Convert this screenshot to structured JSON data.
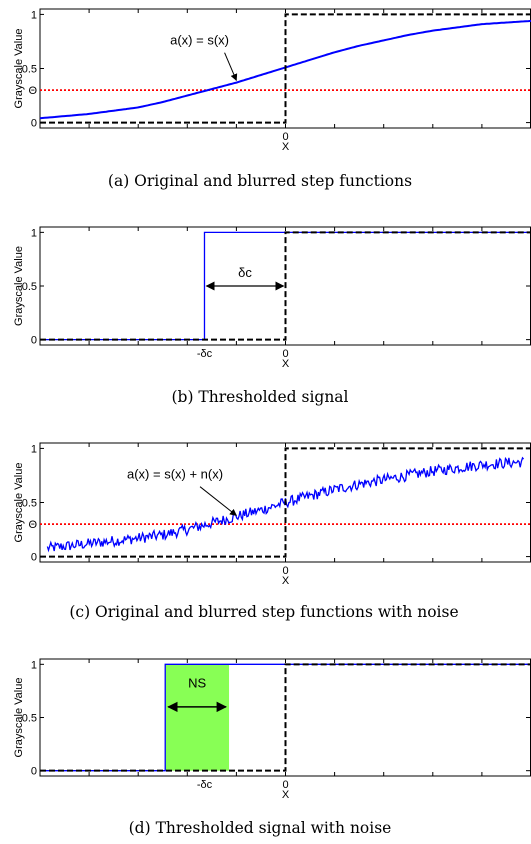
{
  "chart_data": [
    {
      "type": "line",
      "caption": "(a) Original and blurred step functions",
      "ylabel": "Grayscale Value",
      "xlabel": "X",
      "xlim": [
        -1,
        1
      ],
      "ylim": [
        -0.05,
        1.05
      ],
      "yticks": [
        0,
        0.5,
        1
      ],
      "yticklabels": [
        "0",
        "0.5",
        "1"
      ],
      "xticks": [
        0
      ],
      "xticklabels": [
        "0"
      ],
      "threshold": {
        "y": 0.3,
        "label": "Θ",
        "color": "#ff0000"
      },
      "step": {
        "x": 0,
        "low": 0,
        "high": 1,
        "color": "#000000"
      },
      "blurred": {
        "color": "#0000ff",
        "x": [
          -1,
          -0.8,
          -0.6,
          -0.5,
          -0.4,
          -0.3,
          -0.2,
          -0.1,
          0,
          0.1,
          0.2,
          0.3,
          0.4,
          0.5,
          0.6,
          0.8,
          1
        ],
        "y": [
          0.04,
          0.08,
          0.14,
          0.19,
          0.25,
          0.31,
          0.37,
          0.44,
          0.51,
          0.58,
          0.65,
          0.71,
          0.76,
          0.81,
          0.85,
          0.91,
          0.94
        ]
      },
      "annotation": {
        "text": "a(x) = s(x)",
        "x": -0.35,
        "y": 0.72,
        "arrow_to": [
          -0.2,
          0.39
        ]
      }
    },
    {
      "type": "line",
      "caption": "(b) Thresholded signal",
      "ylabel": "Grayscale Value",
      "xlabel": "X",
      "xlim": [
        -1,
        1
      ],
      "ylim": [
        -0.05,
        1.05
      ],
      "yticks": [
        0,
        0.5,
        1
      ],
      "yticklabels": [
        "0",
        "0.5",
        "1"
      ],
      "xticks": [
        -0.33,
        0
      ],
      "xticklabels": [
        "-δc",
        "0"
      ],
      "step": {
        "x": 0,
        "low": 0,
        "high": 1,
        "color": "#000000"
      },
      "thresholded": {
        "x": -0.33,
        "low": 0,
        "high": 1,
        "color": "#0000ff"
      },
      "span": {
        "text": "δc",
        "x0": -0.33,
        "x1": 0,
        "y": 0.5
      }
    },
    {
      "type": "line",
      "caption": "(c) Original and blurred step functions with noise",
      "ylabel": "Grayscale Value",
      "xlabel": "X",
      "xlim": [
        -1,
        1
      ],
      "ylim": [
        -0.05,
        1.05
      ],
      "yticks": [
        0,
        0.5,
        1
      ],
      "yticklabels": [
        "0",
        "0.5",
        "1"
      ],
      "xticks": [
        0
      ],
      "xticklabels": [
        "0"
      ],
      "threshold": {
        "y": 0.3,
        "label": "Θ",
        "color": "#ff0000"
      },
      "step": {
        "x": 0,
        "low": 0,
        "high": 1,
        "color": "#000000"
      },
      "noisy": {
        "color": "#0000ff",
        "x_start": -0.97,
        "x_end": 0.97,
        "base_x": [
          -1,
          -0.8,
          -0.6,
          -0.5,
          -0.4,
          -0.3,
          -0.2,
          -0.1,
          0,
          0.1,
          0.2,
          0.3,
          0.4,
          0.5,
          0.6,
          0.8,
          1
        ],
        "base_y": [
          0.07,
          0.12,
          0.17,
          0.2,
          0.25,
          0.31,
          0.37,
          0.43,
          0.5,
          0.56,
          0.62,
          0.67,
          0.71,
          0.75,
          0.79,
          0.85,
          0.88
        ],
        "noise_amplitude": 0.05
      },
      "annotation": {
        "text": "a(x) = s(x) + n(x)",
        "x": -0.45,
        "y": 0.72,
        "arrow_to": [
          -0.2,
          0.38
        ]
      }
    },
    {
      "type": "line",
      "caption": "(d) Thresholded signal with noise",
      "ylabel": "Grayscale Value",
      "xlabel": "X",
      "xlim": [
        -1,
        1
      ],
      "ylim": [
        -0.05,
        1.05
      ],
      "yticks": [
        0,
        0.5,
        1
      ],
      "yticklabels": [
        "0",
        "0.5",
        "1"
      ],
      "xticks": [
        -0.33,
        0
      ],
      "xticklabels": [
        "-δc",
        "0"
      ],
      "step": {
        "x": 0,
        "low": 0,
        "high": 1,
        "color": "#000000"
      },
      "thresholded": {
        "x": -0.49,
        "low": 0,
        "high": 1,
        "color": "#0000ff"
      },
      "noise_band": {
        "text": "NS",
        "x0": -0.49,
        "x1": -0.23,
        "color": "#88ff55"
      }
    }
  ]
}
